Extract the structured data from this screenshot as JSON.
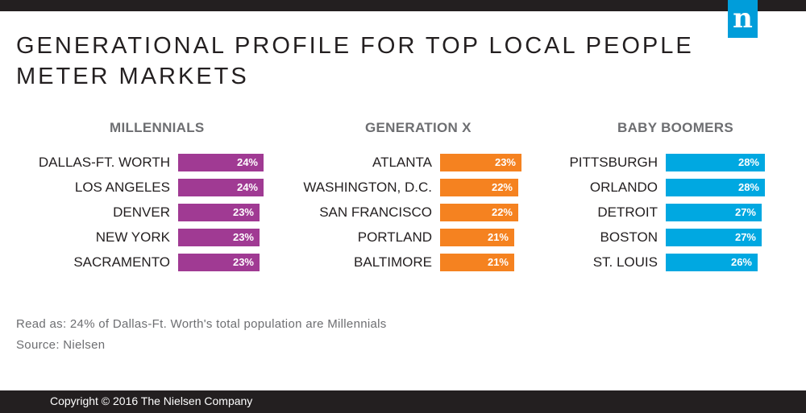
{
  "header": {
    "title": "GENERATIONAL PROFILE FOR TOP LOCAL PEOPLE METER MARKETS",
    "logo_text": "n",
    "logo_color": "#009dda"
  },
  "chart_data": [
    {
      "type": "bar",
      "title": "MILLENNIALS",
      "color": "#a03a93",
      "categories": [
        "DALLAS-FT. WORTH",
        "LOS ANGELES",
        "DENVER",
        "NEW YORK",
        "SACRAMENTO"
      ],
      "values": [
        24,
        24,
        23,
        23,
        23
      ],
      "value_labels": [
        "24%",
        "24%",
        "23%",
        "23%",
        "23%"
      ]
    },
    {
      "type": "bar",
      "title": "GENERATION X",
      "color": "#f58220",
      "categories": [
        "ATLANTA",
        "WASHINGTON, D.C.",
        "SAN FRANCISCO",
        "PORTLAND",
        "BALTIMORE"
      ],
      "values": [
        23,
        22,
        22,
        21,
        21
      ],
      "value_labels": [
        "23%",
        "22%",
        "22%",
        "21%",
        "21%"
      ]
    },
    {
      "type": "bar",
      "title": "BABY BOOMERS",
      "color": "#00a8e1",
      "categories": [
        "PITTSBURGH",
        "ORLANDO",
        "DETROIT",
        "BOSTON",
        "ST. LOUIS"
      ],
      "values": [
        28,
        28,
        27,
        27,
        26
      ],
      "value_labels": [
        "28%",
        "28%",
        "27%",
        "27%",
        "26%"
      ]
    }
  ],
  "notes": {
    "read_as": "Read as: 24% of Dallas-Ft. Worth's total population are Millennials",
    "source": "Source: Nielsen"
  },
  "footer": {
    "copyright": "Copyright © 2016 The Nielsen Company"
  }
}
